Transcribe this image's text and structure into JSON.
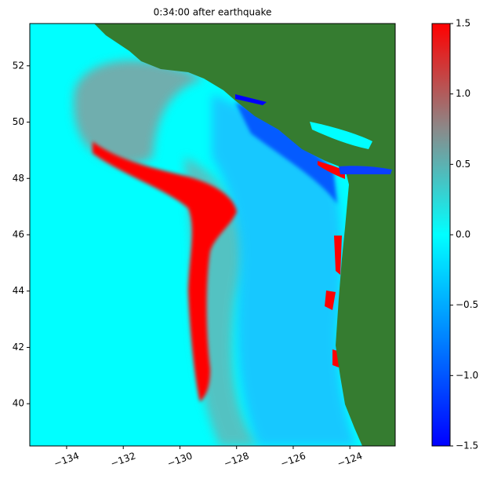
{
  "chart_data": {
    "type": "heatmap",
    "title": "0:34:00 after earthquake",
    "xlim": [
      -135.3,
      -122.4
    ],
    "ylim": [
      38.5,
      53.5
    ],
    "xticks": [
      {
        "value": -134,
        "label": "−134"
      },
      {
        "value": -132,
        "label": "−132"
      },
      {
        "value": -130,
        "label": "−130"
      },
      {
        "value": -128,
        "label": "−128"
      },
      {
        "value": -126,
        "label": "−126"
      },
      {
        "value": -124,
        "label": "−124"
      }
    ],
    "yticks": [
      40,
      42,
      44,
      46,
      48,
      50,
      52
    ],
    "colorbar": {
      "clim": [
        -1.5,
        1.5
      ],
      "ticks": [
        {
          "value": -1.5,
          "label": "−1.5"
        },
        {
          "value": -1.0,
          "label": "−1.0"
        },
        {
          "value": -0.5,
          "label": "−0.5"
        },
        {
          "value": 0,
          "label": "0.0"
        },
        0.5,
        {
          "value": 1.0,
          "label": "1.0"
        },
        1.5
      ],
      "colors": [
        "#0000ff",
        "#0080ff",
        "#00ffff",
        "#8a8a8a",
        "#ff0000"
      ]
    }
  }
}
